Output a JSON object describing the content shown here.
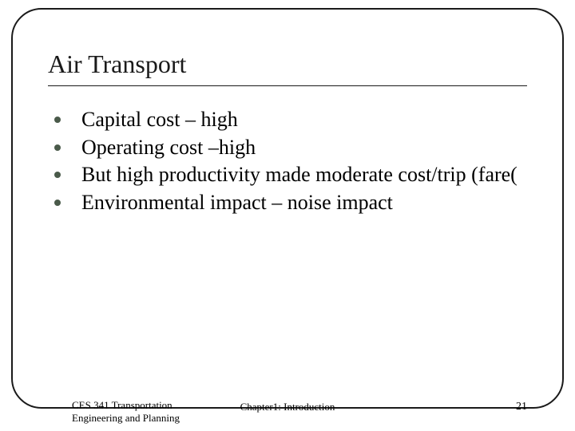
{
  "slide": {
    "title": "Air Transport",
    "bullets": [
      "Capital cost – high",
      "Operating cost –high",
      "But high productivity made moderate cost/trip (fare(",
      "Environmental impact – noise impact"
    ],
    "footer_left": "CES 341 Transportation Engineering and Planning",
    "footer_center": "Chapter1: Introduction",
    "page_number": "21",
    "border_color": "#1a1a1a",
    "bullet_color": "#4a5a4a",
    "text_color": "#000000",
    "background_color": "#ffffff",
    "title_fontsize": 32,
    "body_fontsize": 26,
    "footer_fontsize": 13,
    "border_radius": 38
  }
}
